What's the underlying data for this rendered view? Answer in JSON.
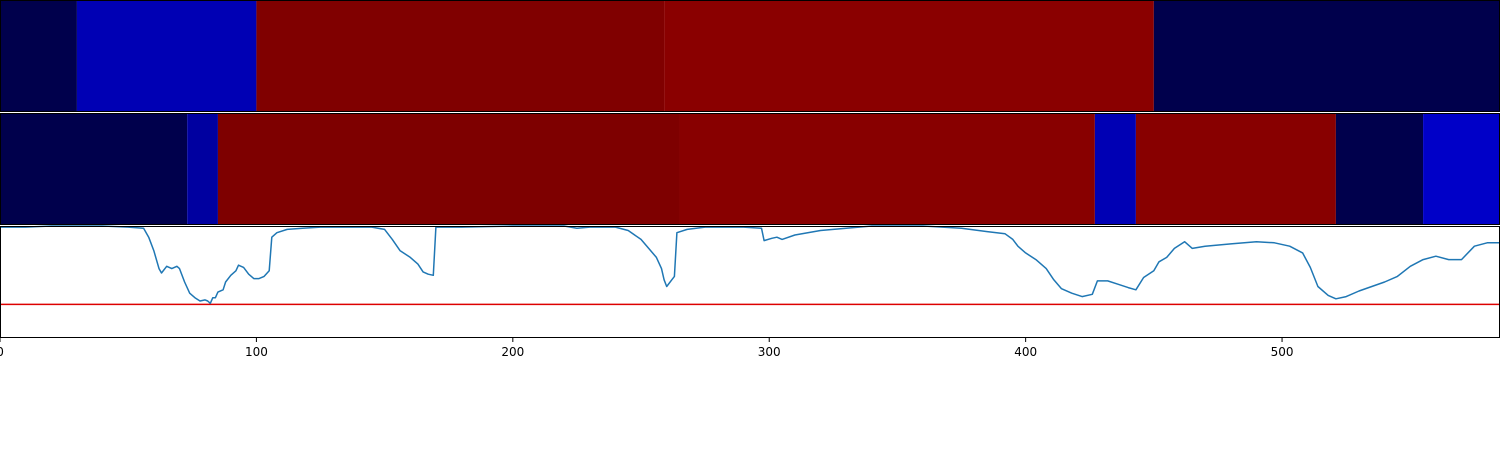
{
  "chart_data": [
    {
      "type": "heatmap",
      "title": "",
      "colormap": "seismic",
      "x_range": [
        0,
        585
      ],
      "segments": [
        {
          "start": 0,
          "end": 30,
          "color": "#00004c"
        },
        {
          "start": 30,
          "end": 100,
          "color": "#0000b4"
        },
        {
          "start": 100,
          "end": 259,
          "color": "#800000"
        },
        {
          "start": 259,
          "end": 450,
          "color": "#8a0000"
        },
        {
          "start": 450,
          "end": 585,
          "color": "#00004c"
        }
      ]
    },
    {
      "type": "heatmap",
      "title": "",
      "colormap": "seismic",
      "x_range": [
        0,
        585
      ],
      "segments": [
        {
          "start": 0,
          "end": 73,
          "color": "#00004c"
        },
        {
          "start": 73,
          "end": 85,
          "color": "#0000a0"
        },
        {
          "start": 85,
          "end": 265,
          "color": "#7e0000"
        },
        {
          "start": 265,
          "end": 427,
          "color": "#880000"
        },
        {
          "start": 427,
          "end": 443,
          "color": "#0000b4"
        },
        {
          "start": 443,
          "end": 521,
          "color": "#880000"
        },
        {
          "start": 521,
          "end": 555,
          "color": "#00004c"
        },
        {
          "start": 555,
          "end": 585,
          "color": "#0000c8"
        }
      ]
    },
    {
      "type": "line",
      "title": "",
      "xlabel": "",
      "ylabel": "",
      "xlim": [
        0,
        585
      ],
      "ylim": [
        0,
        1
      ],
      "x_ticks": [
        0,
        100,
        200,
        300,
        400,
        500
      ],
      "grid": false,
      "threshold": {
        "value": 0.3,
        "color": "#dd0000"
      },
      "series": [
        {
          "color": "#1f77b4",
          "points": [
            [
              0,
              0.99
            ],
            [
              10,
              0.99
            ],
            [
              20,
              1.0
            ],
            [
              40,
              1.0
            ],
            [
              50,
              0.99
            ],
            [
              56,
              0.98
            ],
            [
              58,
              0.9
            ],
            [
              60,
              0.78
            ],
            [
              62,
              0.62
            ],
            [
              63,
              0.58
            ],
            [
              65,
              0.64
            ],
            [
              67,
              0.62
            ],
            [
              69,
              0.64
            ],
            [
              70,
              0.62
            ],
            [
              72,
              0.5
            ],
            [
              74,
              0.4
            ],
            [
              76,
              0.36
            ],
            [
              78,
              0.33
            ],
            [
              80,
              0.34
            ],
            [
              81,
              0.33
            ],
            [
              82,
              0.31
            ],
            [
              83,
              0.36
            ],
            [
              84,
              0.36
            ],
            [
              85,
              0.41
            ],
            [
              87,
              0.43
            ],
            [
              88,
              0.5
            ],
            [
              90,
              0.56
            ],
            [
              92,
              0.6
            ],
            [
              93,
              0.65
            ],
            [
              95,
              0.63
            ],
            [
              97,
              0.57
            ],
            [
              99,
              0.53
            ],
            [
              101,
              0.53
            ],
            [
              103,
              0.55
            ],
            [
              105,
              0.6
            ],
            [
              106,
              0.9
            ],
            [
              108,
              0.94
            ],
            [
              112,
              0.97
            ],
            [
              118,
              0.98
            ],
            [
              125,
              0.99
            ],
            [
              135,
              0.99
            ],
            [
              145,
              0.99
            ],
            [
              150,
              0.97
            ],
            [
              153,
              0.88
            ],
            [
              156,
              0.78
            ],
            [
              160,
              0.72
            ],
            [
              163,
              0.66
            ],
            [
              165,
              0.59
            ],
            [
              167,
              0.57
            ],
            [
              169,
              0.56
            ],
            [
              170,
              0.99
            ],
            [
              180,
              0.99
            ],
            [
              200,
              1.0
            ],
            [
              220,
              1.0
            ],
            [
              225,
              0.98
            ],
            [
              230,
              0.99
            ],
            [
              240,
              0.99
            ],
            [
              245,
              0.96
            ],
            [
              250,
              0.88
            ],
            [
              253,
              0.8
            ],
            [
              256,
              0.72
            ],
            [
              258,
              0.62
            ],
            [
              259,
              0.52
            ],
            [
              260,
              0.46
            ],
            [
              262,
              0.52
            ],
            [
              263,
              0.55
            ],
            [
              264,
              0.94
            ],
            [
              268,
              0.97
            ],
            [
              275,
              0.99
            ],
            [
              290,
              0.99
            ],
            [
              297,
              0.98
            ],
            [
              298,
              0.87
            ],
            [
              301,
              0.89
            ],
            [
              303,
              0.9
            ],
            [
              305,
              0.88
            ],
            [
              310,
              0.92
            ],
            [
              315,
              0.94
            ],
            [
              320,
              0.96
            ],
            [
              330,
              0.98
            ],
            [
              340,
              1.0
            ],
            [
              360,
              1.0
            ],
            [
              375,
              0.98
            ],
            [
              385,
              0.95
            ],
            [
              392,
              0.93
            ],
            [
              395,
              0.88
            ],
            [
              397,
              0.82
            ],
            [
              400,
              0.76
            ],
            [
              404,
              0.7
            ],
            [
              408,
              0.62
            ],
            [
              411,
              0.52
            ],
            [
              414,
              0.44
            ],
            [
              418,
              0.4
            ],
            [
              422,
              0.37
            ],
            [
              426,
              0.39
            ],
            [
              428,
              0.51
            ],
            [
              432,
              0.51
            ],
            [
              436,
              0.48
            ],
            [
              440,
              0.45
            ],
            [
              443,
              0.43
            ],
            [
              446,
              0.54
            ],
            [
              450,
              0.6
            ],
            [
              452,
              0.68
            ],
            [
              455,
              0.72
            ],
            [
              458,
              0.8
            ],
            [
              462,
              0.86
            ],
            [
              465,
              0.8
            ],
            [
              470,
              0.82
            ],
            [
              480,
              0.84
            ],
            [
              490,
              0.86
            ],
            [
              497,
              0.85
            ],
            [
              503,
              0.82
            ],
            [
              508,
              0.76
            ],
            [
              511,
              0.63
            ],
            [
              514,
              0.46
            ],
            [
              518,
              0.38
            ],
            [
              521,
              0.35
            ],
            [
              525,
              0.37
            ],
            [
              530,
              0.42
            ],
            [
              535,
              0.46
            ],
            [
              540,
              0.5
            ],
            [
              545,
              0.55
            ],
            [
              550,
              0.64
            ],
            [
              555,
              0.7
            ],
            [
              560,
              0.73
            ],
            [
              565,
              0.7
            ],
            [
              570,
              0.7
            ],
            [
              575,
              0.82
            ],
            [
              580,
              0.85
            ],
            [
              585,
              0.85
            ]
          ]
        }
      ]
    }
  ]
}
